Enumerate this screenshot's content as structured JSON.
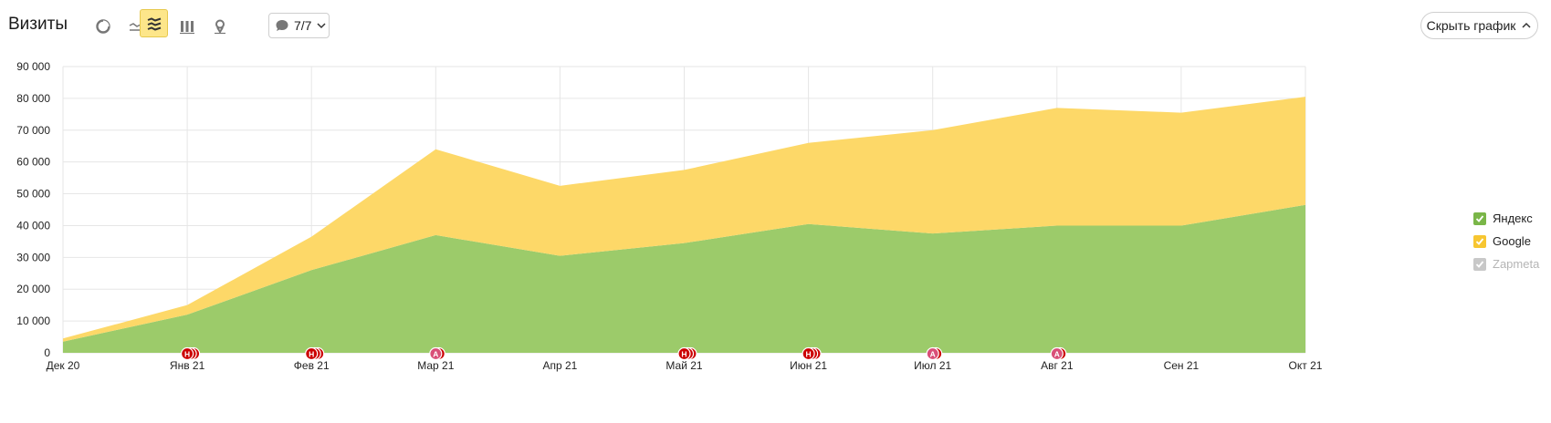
{
  "header": {
    "title": "Визиты",
    "notes_label": "7/7",
    "hide_chart_label": "Скрыть график"
  },
  "toolbar_icons": [
    "pie-icon",
    "line-icon",
    "area-stack-icon",
    "bar-icon",
    "map-icon"
  ],
  "legend": [
    {
      "label": "Яндекс",
      "color": "#7ab648",
      "checked": true,
      "enabled": true
    },
    {
      "label": "Google",
      "color": "#f7c631",
      "checked": true,
      "enabled": true
    },
    {
      "label": "Zapmeta",
      "color": "#c8c8c8",
      "checked": true,
      "enabled": false
    }
  ],
  "chart_data": {
    "type": "area",
    "stacked": true,
    "categories": [
      "Дек 20",
      "Янв 21",
      "Фев 21",
      "Мар 21",
      "Апр 21",
      "Май 21",
      "Июн 21",
      "Июл 21",
      "Авг 21",
      "Сен 21",
      "Окт 21"
    ],
    "ytick_labels": [
      "0",
      "10 000",
      "20 000",
      "30 000",
      "40 000",
      "50 000",
      "60 000",
      "70 000",
      "80 000",
      "90 000"
    ],
    "ylim": [
      0,
      90000
    ],
    "grid": true,
    "series": [
      {
        "name": "Яндекс",
        "color": "#9ccb6a",
        "values": [
          3500,
          12000,
          26000,
          37000,
          30500,
          34500,
          40500,
          37500,
          40000,
          40000,
          46500
        ]
      },
      {
        "name": "Google",
        "color": "#fdd868",
        "values": [
          1000,
          3000,
          10500,
          27000,
          22000,
          23000,
          25500,
          32500,
          37000,
          35500,
          34000
        ]
      }
    ],
    "markers": [
      {
        "x_index": 1,
        "labels": [
          "Н"
        ],
        "color": "#cc0000"
      },
      {
        "x_index": 2,
        "labels": [
          "Н"
        ],
        "color": "#cc0000"
      },
      {
        "x_index": 3,
        "labels": [
          "А"
        ],
        "color": "#d94f78"
      },
      {
        "x_index": 5,
        "labels": [
          "Н"
        ],
        "color": "#cc0000"
      },
      {
        "x_index": 6,
        "labels": [
          "Н"
        ],
        "color": "#cc0000"
      },
      {
        "x_index": 7,
        "labels": [
          "А"
        ],
        "color": "#d94f78"
      },
      {
        "x_index": 8,
        "labels": [
          "А"
        ],
        "color": "#d94f78"
      }
    ]
  }
}
